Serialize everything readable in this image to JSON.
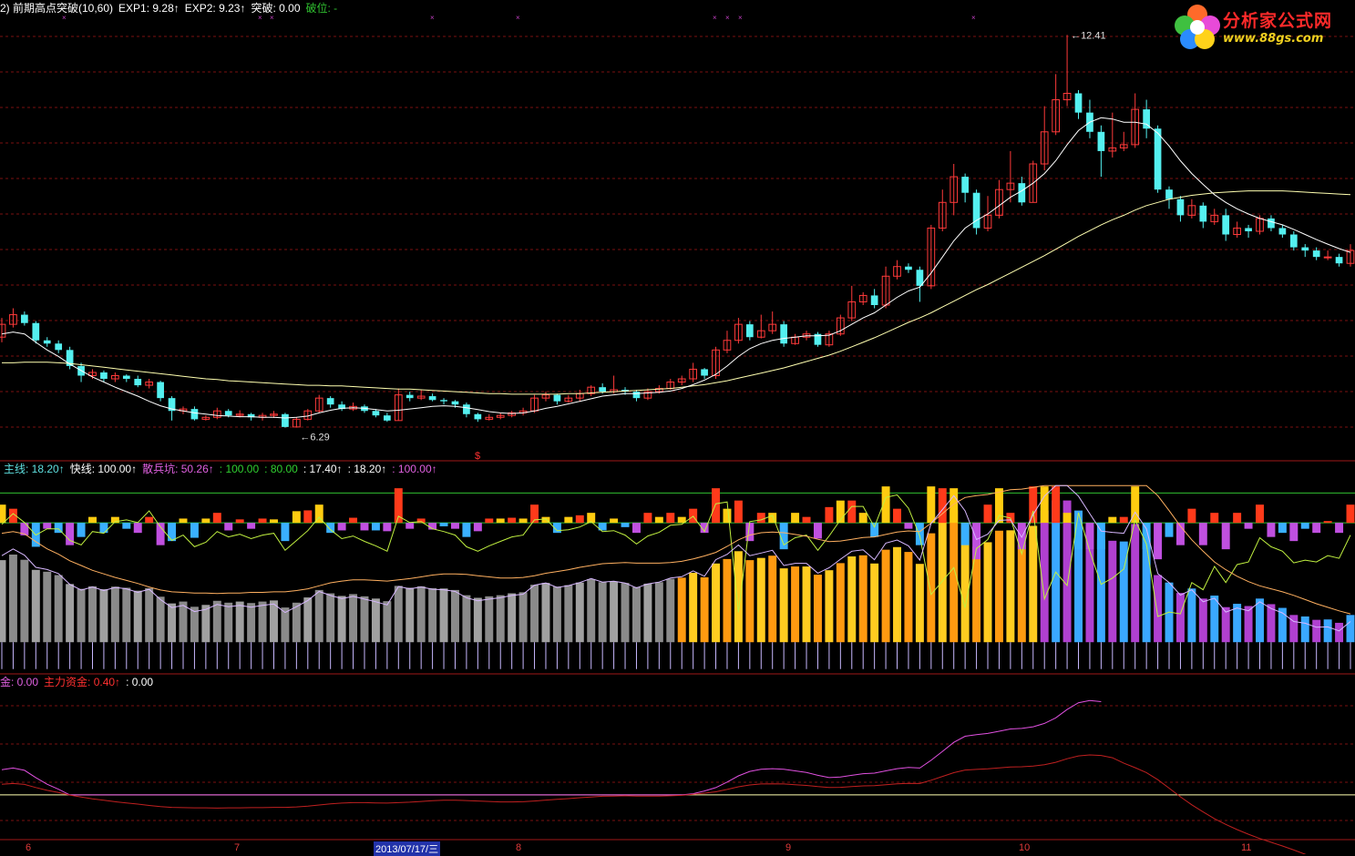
{
  "window": {
    "header_main": [
      {
        "text": "2) 前期高点突破(10,60)",
        "color": "#ffffff"
      },
      {
        "text": "EXP1: 9.28↑",
        "color": "#ffffff"
      },
      {
        "text": "EXP2: 9.23↑",
        "color": "#ffffff"
      },
      {
        "text": "突破: 0.00",
        "color": "#ffffff"
      },
      {
        "text": "破位: -",
        "color": "#30c030"
      }
    ],
    "header_mid": [
      {
        "text": "主线: 18.20↑",
        "color": "#5fe0e0"
      },
      {
        "text": "快线: 100.00↑",
        "color": "#ffffff"
      },
      {
        "text": "散兵坑: 50.26↑",
        "color": "#e060e0"
      },
      {
        "text": ": 100.00",
        "color": "#30d030"
      },
      {
        "text": ": 80.00",
        "color": "#30d030"
      },
      {
        "text": ": 17.40↑",
        "color": "#ffffff"
      },
      {
        "text": ": 18.20↑",
        "color": "#ffffff"
      },
      {
        "text": ": 100.00↑",
        "color": "#e060e0"
      }
    ],
    "header_bottom": [
      {
        "text": "金: 0.00",
        "color": "#e060e0"
      },
      {
        "text": "主力资金: 0.40↑",
        "color": "#ff3030"
      },
      {
        "text": ": 0.00",
        "color": "#ffffff"
      }
    ],
    "x_labels": [
      "6",
      "7",
      "8",
      "9",
      "10",
      "11"
    ],
    "selected_date": "2013/07/17/三",
    "watermark_title": "分析家公式网",
    "watermark_url": "www.88gs.com",
    "signal_mark": "$"
  },
  "chart_data": [
    {
      "type": "candlestick",
      "ylim": [
        6.0,
        12.6
      ],
      "annotations": [
        {
          "label": "12.41",
          "value": 12.41,
          "kind": "high"
        },
        {
          "label": "6.29",
          "value": 6.29,
          "kind": "low"
        }
      ],
      "colors": {
        "up": "#ff3a3a",
        "down": "#54f0f0",
        "ma_fast": "#ffffff",
        "ma_slow": "#ffffb0",
        "grid": "#7a1010"
      },
      "candles": [
        [
          7.7,
          7.9,
          7.62,
          8.0
        ],
        [
          7.9,
          8.05,
          7.85,
          8.15
        ],
        [
          8.05,
          7.92,
          7.88,
          8.1
        ],
        [
          7.92,
          7.65,
          7.6,
          7.95
        ],
        [
          7.65,
          7.6,
          7.55,
          7.7
        ],
        [
          7.6,
          7.5,
          7.45,
          7.65
        ],
        [
          7.5,
          7.25,
          7.2,
          7.55
        ],
        [
          7.25,
          7.1,
          7.0,
          7.3
        ],
        [
          7.1,
          7.15,
          7.05,
          7.2
        ],
        [
          7.15,
          7.05,
          7.0,
          7.18
        ],
        [
          7.05,
          7.1,
          7.0,
          7.15
        ],
        [
          7.1,
          7.05,
          7.0,
          7.12
        ],
        [
          7.05,
          6.95,
          6.92,
          7.1
        ],
        [
          6.95,
          7.0,
          6.9,
          7.05
        ],
        [
          7.0,
          6.75,
          6.7,
          7.02
        ],
        [
          6.75,
          6.55,
          6.4,
          6.78
        ],
        [
          6.55,
          6.58,
          6.5,
          6.62
        ],
        [
          6.58,
          6.42,
          6.4,
          6.62
        ],
        [
          6.42,
          6.45,
          6.4,
          6.48
        ],
        [
          6.45,
          6.55,
          6.42,
          6.6
        ],
        [
          6.55,
          6.48,
          6.45,
          6.58
        ],
        [
          6.48,
          6.5,
          6.45,
          6.56
        ],
        [
          6.5,
          6.45,
          6.4,
          6.52
        ],
        [
          6.45,
          6.48,
          6.4,
          6.52
        ],
        [
          6.48,
          6.5,
          6.44,
          6.55
        ],
        [
          6.5,
          6.3,
          6.29,
          6.52
        ],
        [
          6.3,
          6.42,
          6.29,
          6.45
        ],
        [
          6.42,
          6.55,
          6.4,
          6.58
        ],
        [
          6.55,
          6.75,
          6.52,
          6.8
        ],
        [
          6.75,
          6.65,
          6.6,
          6.78
        ],
        [
          6.65,
          6.58,
          6.55,
          6.7
        ],
        [
          6.58,
          6.62,
          6.55,
          6.68
        ],
        [
          6.62,
          6.55,
          6.52,
          6.65
        ],
        [
          6.55,
          6.48,
          6.45,
          6.58
        ],
        [
          6.48,
          6.4,
          6.38,
          6.52
        ],
        [
          6.4,
          6.8,
          6.4,
          6.9
        ],
        [
          6.8,
          6.75,
          6.7,
          6.85
        ],
        [
          6.75,
          6.78,
          6.72,
          6.88
        ],
        [
          6.78,
          6.72,
          6.7,
          6.82
        ],
        [
          6.72,
          6.7,
          6.65,
          6.75
        ],
        [
          6.7,
          6.65,
          6.6,
          6.72
        ],
        [
          6.65,
          6.5,
          6.45,
          6.68
        ],
        [
          6.5,
          6.42,
          6.38,
          6.52
        ],
        [
          6.42,
          6.45,
          6.4,
          6.5
        ],
        [
          6.45,
          6.48,
          6.42,
          6.52
        ],
        [
          6.48,
          6.52,
          6.45,
          6.55
        ],
        [
          6.52,
          6.55,
          6.48,
          6.6
        ],
        [
          6.55,
          6.75,
          6.52,
          6.8
        ],
        [
          6.75,
          6.8,
          6.7,
          6.85
        ],
        [
          6.8,
          6.7,
          6.65,
          6.82
        ],
        [
          6.7,
          6.75,
          6.68,
          6.8
        ],
        [
          6.75,
          6.82,
          6.7,
          6.88
        ],
        [
          6.82,
          6.92,
          6.78,
          6.95
        ],
        [
          6.92,
          6.85,
          6.82,
          6.98
        ],
        [
          6.85,
          6.88,
          6.82,
          7.1
        ],
        [
          6.88,
          6.85,
          6.8,
          6.92
        ],
        [
          6.85,
          6.75,
          6.7,
          6.88
        ],
        [
          6.75,
          6.85,
          6.72,
          6.9
        ],
        [
          6.85,
          6.9,
          6.82,
          6.95
        ],
        [
          6.9,
          7.0,
          6.88,
          7.05
        ],
        [
          7.0,
          7.05,
          6.95,
          7.1
        ],
        [
          7.05,
          7.2,
          7.0,
          7.3
        ],
        [
          7.2,
          7.1,
          7.05,
          7.22
        ],
        [
          7.1,
          7.5,
          7.05,
          7.55
        ],
        [
          7.5,
          7.65,
          7.45,
          7.8
        ],
        [
          7.65,
          7.9,
          7.6,
          8.0
        ],
        [
          7.9,
          7.7,
          7.65,
          7.95
        ],
        [
          7.7,
          7.8,
          7.68,
          8.05
        ],
        [
          7.8,
          7.9,
          7.75,
          8.1
        ],
        [
          7.9,
          7.6,
          7.55,
          7.95
        ],
        [
          7.6,
          7.7,
          7.58,
          7.75
        ],
        [
          7.7,
          7.75,
          7.65,
          7.8
        ],
        [
          7.75,
          7.58,
          7.55,
          7.78
        ],
        [
          7.58,
          7.75,
          7.55,
          7.8
        ],
        [
          7.75,
          8.0,
          7.72,
          8.05
        ],
        [
          8.0,
          8.25,
          7.95,
          8.5
        ],
        [
          8.25,
          8.35,
          8.2,
          8.4
        ],
        [
          8.35,
          8.2,
          8.15,
          8.45
        ],
        [
          8.2,
          8.65,
          8.15,
          8.8
        ],
        [
          8.65,
          8.8,
          8.6,
          8.9
        ],
        [
          8.8,
          8.75,
          8.7,
          8.85
        ],
        [
          8.75,
          8.5,
          8.25,
          8.8
        ],
        [
          8.5,
          9.4,
          8.45,
          9.45
        ],
        [
          9.4,
          9.8,
          9.35,
          10.0
        ],
        [
          9.8,
          10.2,
          9.6,
          10.4
        ],
        [
          10.2,
          9.95,
          9.8,
          10.25
        ],
        [
          9.95,
          9.4,
          9.3,
          10.0
        ],
        [
          9.4,
          9.6,
          9.35,
          9.9
        ],
        [
          9.6,
          10.0,
          9.55,
          10.15
        ],
        [
          10.0,
          10.1,
          9.8,
          10.6
        ],
        [
          10.1,
          9.8,
          9.75,
          10.2
        ],
        [
          9.8,
          10.4,
          9.8,
          10.45
        ],
        [
          10.4,
          10.9,
          10.3,
          11.3
        ],
        [
          10.9,
          11.4,
          10.85,
          11.8
        ],
        [
          11.4,
          11.5,
          11.3,
          12.41
        ],
        [
          11.5,
          11.2,
          11.1,
          11.55
        ],
        [
          11.2,
          10.9,
          10.8,
          11.4
        ],
        [
          10.9,
          10.6,
          10.2,
          11.0
        ],
        [
          10.6,
          10.65,
          10.5,
          11.2
        ],
        [
          10.65,
          10.7,
          10.6,
          10.9
        ],
        [
          10.7,
          11.25,
          10.65,
          11.5
        ],
        [
          11.25,
          10.95,
          10.8,
          11.4
        ],
        [
          10.95,
          10.0,
          9.95,
          11.0
        ],
        [
          10.0,
          9.85,
          9.7,
          10.05
        ],
        [
          9.85,
          9.6,
          9.5,
          9.9
        ],
        [
          9.6,
          9.75,
          9.55,
          9.85
        ],
        [
          9.75,
          9.5,
          9.4,
          9.8
        ],
        [
          9.5,
          9.6,
          9.45,
          9.7
        ],
        [
          9.6,
          9.3,
          9.2,
          9.7
        ],
        [
          9.3,
          9.4,
          9.25,
          9.5
        ],
        [
          9.4,
          9.35,
          9.25,
          9.45
        ],
        [
          9.35,
          9.55,
          9.3,
          9.6
        ],
        [
          9.55,
          9.4,
          9.35,
          9.6
        ],
        [
          9.4,
          9.3,
          9.25,
          9.45
        ],
        [
          9.3,
          9.1,
          9.05,
          9.35
        ],
        [
          9.1,
          9.05,
          8.95,
          9.15
        ],
        [
          9.05,
          8.95,
          8.9,
          9.1
        ],
        [
          8.95,
          8.95,
          8.9,
          9.05
        ],
        [
          8.95,
          8.85,
          8.8,
          9.0
        ],
        [
          8.85,
          9.05,
          8.8,
          9.15
        ]
      ],
      "ma_fast": [
        7.75,
        7.78,
        7.75,
        7.62,
        7.5,
        7.4,
        7.28,
        7.18,
        7.08,
        7.0,
        6.92,
        6.85,
        6.78,
        6.7,
        6.63,
        6.58,
        6.55,
        6.52,
        6.5,
        6.48,
        6.47,
        6.46,
        6.46,
        6.45,
        6.45,
        6.44,
        6.45,
        6.47,
        6.52,
        6.56,
        6.59,
        6.6,
        6.59,
        6.57,
        6.55,
        6.56,
        6.58,
        6.6,
        6.62,
        6.63,
        6.62,
        6.6,
        6.57,
        6.54,
        6.52,
        6.51,
        6.52,
        6.55,
        6.59,
        6.62,
        6.66,
        6.7,
        6.74,
        6.78,
        6.8,
        6.82,
        6.82,
        6.83,
        6.84,
        6.86,
        6.9,
        6.96,
        7.03,
        7.12,
        7.25,
        7.4,
        7.52,
        7.6,
        7.65,
        7.68,
        7.7,
        7.72,
        7.72,
        7.73,
        7.8,
        7.9,
        8.0,
        8.08,
        8.2,
        8.32,
        8.42,
        8.48,
        8.7,
        8.95,
        9.2,
        9.4,
        9.52,
        9.62,
        9.75,
        9.88,
        9.98,
        10.1,
        10.25,
        10.45,
        10.7,
        10.92,
        11.05,
        11.12,
        11.1,
        11.05,
        11.05,
        11.02,
        10.88,
        10.68,
        10.45,
        10.25,
        10.08,
        9.92,
        9.8,
        9.7,
        9.62,
        9.55,
        9.5,
        9.45,
        9.38,
        9.3,
        9.22,
        9.15,
        9.08,
        9.02
      ],
      "ma_slow": [
        7.3,
        7.3,
        7.31,
        7.31,
        7.31,
        7.3,
        7.29,
        7.27,
        7.25,
        7.23,
        7.21,
        7.19,
        7.17,
        7.15,
        7.13,
        7.11,
        7.09,
        7.07,
        7.05,
        7.04,
        7.02,
        7.01,
        7.0,
        6.99,
        6.98,
        6.97,
        6.96,
        6.95,
        6.95,
        6.94,
        6.94,
        6.93,
        6.92,
        6.91,
        6.9,
        6.89,
        6.89,
        6.88,
        6.87,
        6.86,
        6.85,
        6.84,
        6.83,
        6.82,
        6.82,
        6.81,
        6.81,
        6.81,
        6.81,
        6.81,
        6.82,
        6.82,
        6.83,
        6.84,
        6.85,
        6.86,
        6.87,
        6.88,
        6.89,
        6.9,
        6.92,
        6.94,
        6.96,
        6.99,
        7.02,
        7.06,
        7.1,
        7.14,
        7.18,
        7.22,
        7.27,
        7.32,
        7.37,
        7.42,
        7.48,
        7.55,
        7.62,
        7.69,
        7.77,
        7.85,
        7.93,
        8.0,
        8.08,
        8.17,
        8.26,
        8.35,
        8.44,
        8.52,
        8.61,
        8.7,
        8.79,
        8.88,
        8.97,
        9.07,
        9.17,
        9.27,
        9.36,
        9.45,
        9.53,
        9.6,
        9.68,
        9.75,
        9.8,
        9.85,
        9.88,
        9.91,
        9.93,
        9.95,
        9.96,
        9.97,
        9.98,
        9.98,
        9.98,
        9.98,
        9.97,
        9.96,
        9.95,
        9.94,
        9.93,
        9.92
      ]
    },
    {
      "type": "bar",
      "ylim": [
        -20,
        110
      ],
      "reference_lines": [
        {
          "value": 100,
          "color": "#30c030"
        },
        {
          "value": 80,
          "color": "#30c030"
        }
      ]
    },
    {
      "type": "line",
      "series": [
        {
          "color": "#e050e0"
        },
        {
          "color": "#c02020"
        }
      ],
      "reference_line": {
        "value": 0,
        "color": "#ffffb0"
      },
      "ylim": [
        -1.0,
        2.5
      ]
    }
  ]
}
